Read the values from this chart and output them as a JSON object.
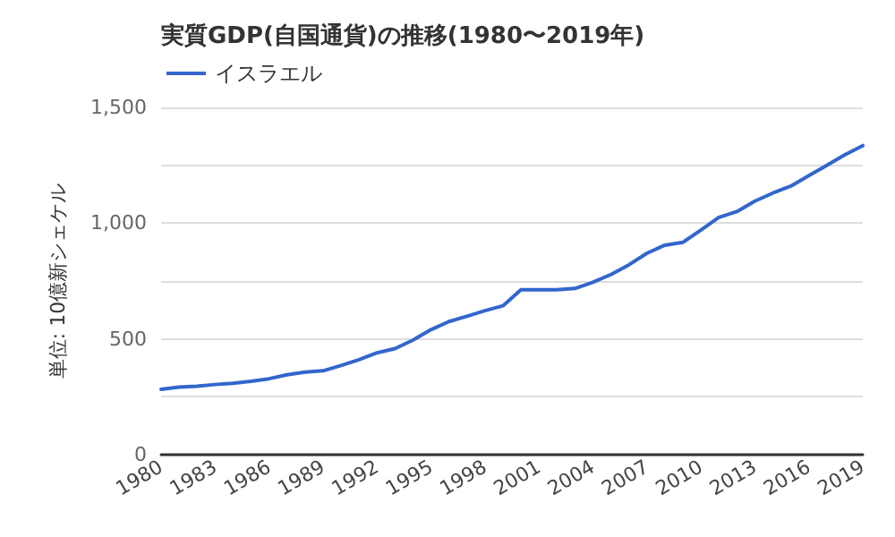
{
  "chart_data": {
    "type": "line",
    "title": "実質GDP(自国通貨)の推移(1980〜2019年)",
    "ylabel": "単位: 10億新シェケル",
    "categories": [
      "1980",
      null,
      null,
      "1983",
      null,
      null,
      "1986",
      null,
      null,
      "1989",
      null,
      null,
      "1992",
      null,
      null,
      "1995",
      null,
      null,
      "1998",
      null,
      null,
      "2001",
      null,
      null,
      "2004",
      null,
      null,
      "2007",
      null,
      null,
      "2010",
      null,
      null,
      "2013",
      null,
      null,
      "2016",
      null,
      null,
      "2019"
    ],
    "series": [
      {
        "name": "イスラエル",
        "color": "#3366cc",
        "values": [
          282,
          292,
          296,
          303,
          308,
          317,
          328,
          345,
          357,
          362,
          385,
          410,
          440,
          458,
          495,
          540,
          575,
          598,
          622,
          643,
          712,
          712,
          712,
          718,
          745,
          778,
          820,
          870,
          905,
          917,
          970,
          1025,
          1050,
          1095,
          1130,
          1160,
          1205,
          1250,
          1295,
          1335
        ]
      }
    ],
    "ylim": [
      0,
      1500
    ],
    "yticks": [
      0,
      {
        "value": 250,
        "label": null
      },
      500,
      {
        "value": 750,
        "label": null
      },
      {
        "value": 1000,
        "label": "1,000"
      },
      {
        "value": 1250,
        "label": null
      },
      {
        "value": 1500,
        "label": "1,500"
      }
    ],
    "grid": "y",
    "legend": "top left",
    "marker": "none",
    "line_style": "solid"
  }
}
